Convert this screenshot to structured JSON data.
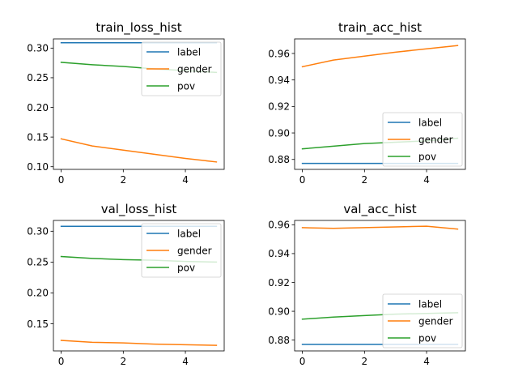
{
  "colors": {
    "label": "#1f77b4",
    "gender": "#ff7f0e",
    "pov": "#2ca02c"
  },
  "chart_data": [
    {
      "type": "line",
      "title": "train_loss_hist",
      "x": [
        0,
        1,
        2,
        3,
        4,
        5
      ],
      "xlim": [
        -0.25,
        5.25
      ],
      "ylim": [
        0.0955,
        0.3155
      ],
      "xticks": [
        0,
        2,
        4
      ],
      "yticks": [
        0.1,
        0.15,
        0.2,
        0.25,
        0.3
      ],
      "ytick_decimals": 2,
      "legend_position": "upper right",
      "series": [
        {
          "name": "label",
          "color": "#1f77b4",
          "values": [
            0.309,
            0.309,
            0.309,
            0.309,
            0.309,
            0.309
          ]
        },
        {
          "name": "gender",
          "color": "#ff7f0e",
          "values": [
            0.147,
            0.135,
            0.128,
            0.121,
            0.114,
            0.108
          ]
        },
        {
          "name": "pov",
          "color": "#2ca02c",
          "values": [
            0.276,
            0.272,
            0.269,
            0.265,
            0.262,
            0.259
          ]
        }
      ]
    },
    {
      "type": "line",
      "title": "train_acc_hist",
      "x": [
        0,
        1,
        2,
        3,
        4,
        5
      ],
      "xlim": [
        -0.25,
        5.25
      ],
      "ylim": [
        0.8725,
        0.971
      ],
      "xticks": [
        0,
        2,
        4
      ],
      "yticks": [
        0.88,
        0.9,
        0.92,
        0.94,
        0.96
      ],
      "ytick_decimals": 2,
      "legend_position": "lower right",
      "series": [
        {
          "name": "label",
          "color": "#1f77b4",
          "values": [
            0.877,
            0.877,
            0.877,
            0.877,
            0.877,
            0.877
          ]
        },
        {
          "name": "gender",
          "color": "#ff7f0e",
          "values": [
            0.95,
            0.955,
            0.958,
            0.961,
            0.9635,
            0.966
          ]
        },
        {
          "name": "pov",
          "color": "#2ca02c",
          "values": [
            0.888,
            0.89,
            0.892,
            0.893,
            0.894,
            0.896
          ]
        }
      ]
    },
    {
      "type": "line",
      "title": "val_loss_hist",
      "x": [
        0,
        1,
        2,
        3,
        4,
        5
      ],
      "xlim": [
        -0.25,
        5.25
      ],
      "ylim": [
        0.106,
        0.3175
      ],
      "xticks": [
        0,
        2,
        4
      ],
      "yticks": [
        0.15,
        0.2,
        0.25,
        0.3
      ],
      "ytick_decimals": 2,
      "legend_position": "upper right",
      "series": [
        {
          "name": "label",
          "color": "#1f77b4",
          "values": [
            0.308,
            0.308,
            0.308,
            0.308,
            0.308,
            0.308
          ]
        },
        {
          "name": "gender",
          "color": "#ff7f0e",
          "values": [
            0.123,
            0.12,
            0.119,
            0.117,
            0.116,
            0.115
          ]
        },
        {
          "name": "pov",
          "color": "#2ca02c",
          "values": [
            0.259,
            0.256,
            0.254,
            0.253,
            0.251,
            0.25
          ]
        }
      ]
    },
    {
      "type": "line",
      "title": "val_acc_hist",
      "x": [
        0,
        1,
        2,
        3,
        4,
        5
      ],
      "xlim": [
        -0.25,
        5.25
      ],
      "ylim": [
        0.8725,
        0.963
      ],
      "xticks": [
        0,
        2,
        4
      ],
      "yticks": [
        0.88,
        0.9,
        0.92,
        0.94,
        0.96
      ],
      "ytick_decimals": 2,
      "legend_position": "lower right",
      "series": [
        {
          "name": "label",
          "color": "#1f77b4",
          "values": [
            0.877,
            0.877,
            0.877,
            0.877,
            0.877,
            0.877
          ]
        },
        {
          "name": "gender",
          "color": "#ff7f0e",
          "values": [
            0.958,
            0.9575,
            0.958,
            0.9585,
            0.959,
            0.957
          ]
        },
        {
          "name": "pov",
          "color": "#2ca02c",
          "values": [
            0.8945,
            0.896,
            0.897,
            0.898,
            0.8985,
            0.899
          ]
        }
      ]
    }
  ]
}
